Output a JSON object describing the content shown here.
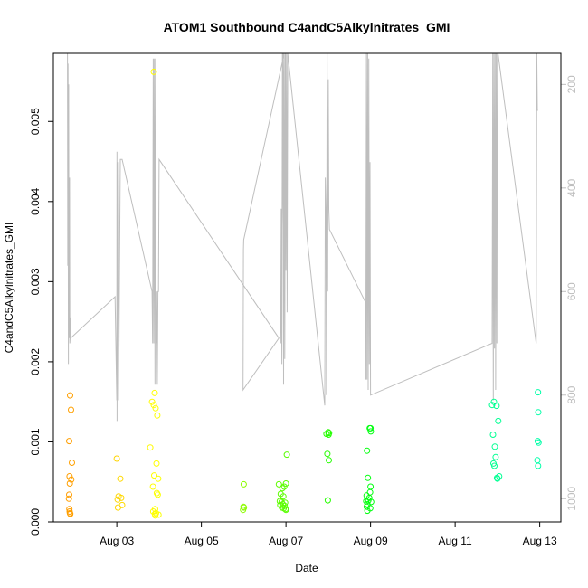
{
  "chart_data": {
    "type": "scatter",
    "title": "ATOM1 Southbound C4andC5Alkylnitrates_GMI",
    "xlabel": "Date",
    "ylabel": "C4andC5Alkylnitrates_GMI",
    "x_type": "date",
    "xlim": [
      "2016-08-01T12:00",
      "2016-08-13T12:00"
    ],
    "ylim": [
      0,
      0.00585
    ],
    "x_ticks": [
      {
        "value": "2016-08-03",
        "label": "Aug 03"
      },
      {
        "value": "2016-08-05",
        "label": "Aug 05"
      },
      {
        "value": "2016-08-07",
        "label": "Aug 07"
      },
      {
        "value": "2016-08-09",
        "label": "Aug 09"
      },
      {
        "value": "2016-08-11",
        "label": "Aug 11"
      },
      {
        "value": "2016-08-13",
        "label": "Aug 13"
      }
    ],
    "y_ticks": [
      {
        "value": 0,
        "label": "0.000"
      },
      {
        "value": 0.001,
        "label": "0.001"
      },
      {
        "value": 0.002,
        "label": "0.002"
      },
      {
        "value": 0.003,
        "label": "0.003"
      },
      {
        "value": 0.004,
        "label": "0.004"
      },
      {
        "value": 0.005,
        "label": "0.005"
      }
    ],
    "y2_reversed": true,
    "y2lim": [
      1045,
      140
    ],
    "y2_ticks": [
      {
        "value": 200,
        "label": "200"
      },
      {
        "value": 400,
        "label": "400"
      },
      {
        "value": 600,
        "label": "600"
      },
      {
        "value": 800,
        "label": "800"
      },
      {
        "value": 1000,
        "label": "1000"
      }
    ],
    "grid": false,
    "legend": "none",
    "point_color_scale": [
      "#ff8c00",
      "#ffff00",
      "#7cfc00",
      "#00ff00",
      "#00ff7f",
      "#00ffb4"
    ],
    "series": [
      {
        "kind": "points",
        "marker": "circle-open",
        "color_by_time": true,
        "points": [
          [
            "2016-08-01T21:30",
            0.00158
          ],
          [
            "2016-08-01T22:00",
            0.0014
          ],
          [
            "2016-08-01T21:00",
            0.00101
          ],
          [
            "2016-08-01T22:30",
            0.00074
          ],
          [
            "2016-08-01T21:10",
            0.00057
          ],
          [
            "2016-08-01T22:10",
            0.00053
          ],
          [
            "2016-08-01T21:20",
            0.00048
          ],
          [
            "2016-08-01T21:00",
            0.00034
          ],
          [
            "2016-08-01T20:50",
            0.00029
          ],
          [
            "2016-08-01T21:05",
            0.00016
          ],
          [
            "2016-08-01T21:15",
            0.00013
          ],
          [
            "2016-08-01T21:25",
            0.00011
          ],
          [
            "2016-08-01T21:35",
            0.0001
          ],
          [
            "2016-08-03T00:00",
            0.00079
          ],
          [
            "2016-08-03T02:00",
            0.00054
          ],
          [
            "2016-08-03T01:00",
            0.00032
          ],
          [
            "2016-08-03T02:30",
            0.0003
          ],
          [
            "2016-08-03T00:30",
            0.00028
          ],
          [
            "2016-08-03T03:00",
            0.00021
          ],
          [
            "2016-08-03T00:40",
            0.00018
          ],
          [
            "2016-08-03T21:00",
            0.00562
          ],
          [
            "2016-08-03T21:30",
            0.00161
          ],
          [
            "2016-08-03T20:00",
            0.0015
          ],
          [
            "2016-08-03T21:00",
            0.00146
          ],
          [
            "2016-08-03T22:00",
            0.00142
          ],
          [
            "2016-08-03T23:00",
            0.00133
          ],
          [
            "2016-08-03T19:00",
            0.00093
          ],
          [
            "2016-08-03T22:30",
            0.00073
          ],
          [
            "2016-08-03T21:15",
            0.00058
          ],
          [
            "2016-08-03T23:30",
            0.00054
          ],
          [
            "2016-08-03T20:30",
            0.00044
          ],
          [
            "2016-08-03T22:45",
            0.00036
          ],
          [
            "2016-08-03T23:15",
            0.00034
          ],
          [
            "2016-08-03T21:45",
            0.00016
          ],
          [
            "2016-08-03T20:40",
            0.00013
          ],
          [
            "2016-08-03T22:15",
            0.00011
          ],
          [
            "2016-08-03T21:40",
            0.0001
          ],
          [
            "2016-08-03T23:40",
            9e-05
          ],
          [
            "2016-08-03T21:50",
            8e-05
          ],
          [
            "2016-08-06T00:00",
            0.00047
          ],
          [
            "2016-08-05T23:50",
            0.00019
          ],
          [
            "2016-08-06T00:10",
            0.00018
          ],
          [
            "2016-08-05T23:40",
            0.00015
          ],
          [
            "2016-08-06T20:00",
            0.00047
          ],
          [
            "2016-08-07T00:00",
            0.00048
          ],
          [
            "2016-08-06T23:00",
            0.00044
          ],
          [
            "2016-08-06T22:00",
            0.00042
          ],
          [
            "2016-08-06T21:00",
            0.00035
          ],
          [
            "2016-08-06T22:30",
            0.00032
          ],
          [
            "2016-08-06T20:30",
            0.00026
          ],
          [
            "2016-08-06T21:30",
            0.00025
          ],
          [
            "2016-08-06T23:30",
            0.00024
          ],
          [
            "2016-08-06T22:15",
            0.00022
          ],
          [
            "2016-08-06T20:45",
            0.00021
          ],
          [
            "2016-08-06T23:15",
            0.0002
          ],
          [
            "2016-08-06T21:45",
            0.00018
          ],
          [
            "2016-08-06T22:45",
            0.00017
          ],
          [
            "2016-08-06T23:45",
            0.00016
          ],
          [
            "2016-08-07T00:00",
            0.00015
          ],
          [
            "2016-08-07T00:30",
            0.00084
          ],
          [
            "2016-08-07T23:00",
            0.0011
          ],
          [
            "2016-08-08T00:00",
            0.00112
          ],
          [
            "2016-08-08T00:30",
            0.00111
          ],
          [
            "2016-08-08T00:10",
            0.00109
          ],
          [
            "2016-08-07T23:30",
            0.00085
          ],
          [
            "2016-08-08T00:20",
            0.00077
          ],
          [
            "2016-08-07T23:45",
            0.00027
          ],
          [
            "2016-08-08T22:00",
            0.00089
          ],
          [
            "2016-08-09T00:00",
            0.00117
          ],
          [
            "2016-08-08T23:30",
            0.00117
          ],
          [
            "2016-08-09T00:10",
            0.00113
          ],
          [
            "2016-08-08T22:30",
            0.00055
          ],
          [
            "2016-08-09T00:00",
            0.00044
          ],
          [
            "2016-08-08T23:45",
            0.00037
          ],
          [
            "2016-08-08T21:45",
            0.00033
          ],
          [
            "2016-08-08T23:15",
            0.0003
          ],
          [
            "2016-08-08T22:45",
            0.00027
          ],
          [
            "2016-08-08T21:30",
            0.00026
          ],
          [
            "2016-08-09T00:20",
            0.00025
          ],
          [
            "2016-08-08T22:15",
            0.00022
          ],
          [
            "2016-08-08T21:50",
            0.00019
          ],
          [
            "2016-08-08T23:50",
            0.00017
          ],
          [
            "2016-08-08T22:10",
            0.00014
          ],
          [
            "2016-08-11T22:00",
            0.0015
          ],
          [
            "2016-08-11T21:00",
            0.00146
          ],
          [
            "2016-08-11T23:30",
            0.00145
          ],
          [
            "2016-08-12T00:30",
            0.00126
          ],
          [
            "2016-08-11T21:30",
            0.00109
          ],
          [
            "2016-08-11T22:30",
            0.00094
          ],
          [
            "2016-08-11T23:00",
            0.00081
          ],
          [
            "2016-08-11T21:45",
            0.00073
          ],
          [
            "2016-08-11T22:15",
            0.0007
          ],
          [
            "2016-08-12T01:00",
            0.00057
          ],
          [
            "2016-08-12T00:00",
            0.00054
          ],
          [
            "2016-08-11T23:45",
            0.00055
          ],
          [
            "2016-08-12T23:00",
            0.00162
          ],
          [
            "2016-08-12T23:10",
            0.00137
          ],
          [
            "2016-08-12T22:50",
            0.00101
          ],
          [
            "2016-08-12T23:20",
            0.00099
          ],
          [
            "2016-08-12T22:40",
            0.00077
          ],
          [
            "2016-08-12T23:05",
            0.0007
          ]
        ]
      },
      {
        "kind": "line",
        "axis": "y2",
        "color": "#bebebe",
        "points": [
          [
            "2016-08-01T20:00",
            140
          ],
          [
            "2016-08-01T20:10",
            550
          ],
          [
            "2016-08-01T20:20",
            160
          ],
          [
            "2016-08-01T20:30",
            740
          ],
          [
            "2016-08-01T20:40",
            200
          ],
          [
            "2016-08-01T20:50",
            640
          ],
          [
            "2016-08-01T21:00",
            690
          ],
          [
            "2016-08-01T21:10",
            380
          ],
          [
            "2016-08-01T21:20",
            700
          ],
          [
            "2016-08-01T21:30",
            690
          ],
          [
            "2016-08-01T21:40",
            650
          ],
          [
            "2016-08-01T21:50",
            690
          ],
          [
            "2016-08-02T23:00",
            610
          ],
          [
            "2016-08-03T00:00",
            810
          ],
          [
            "2016-08-03T00:05",
            330
          ],
          [
            "2016-08-03T00:10",
            850
          ],
          [
            "2016-08-03T00:20",
            350
          ],
          [
            "2016-08-03T01:00",
            810
          ],
          [
            "2016-08-03T02:00",
            345
          ],
          [
            "2016-08-03T03:00",
            345
          ],
          [
            "2016-08-03T20:00",
            600
          ],
          [
            "2016-08-03T20:20",
            700
          ],
          [
            "2016-08-03T20:40",
            150
          ],
          [
            "2016-08-03T21:00",
            700
          ],
          [
            "2016-08-03T21:20",
            150
          ],
          [
            "2016-08-03T21:40",
            780
          ],
          [
            "2016-08-03T22:00",
            150
          ],
          [
            "2016-08-03T22:20",
            700
          ],
          [
            "2016-08-03T22:40",
            600
          ],
          [
            "2016-08-03T23:00",
            780
          ],
          [
            "2016-08-03T23:20",
            600
          ],
          [
            "2016-08-03T23:40",
            600
          ],
          [
            "2016-08-04T00:00",
            345
          ],
          [
            "2016-08-06T20:00",
            690
          ],
          [
            "2016-08-05T23:40",
            790
          ],
          [
            "2016-08-05T23:50",
            520
          ],
          [
            "2016-08-06T00:00",
            500
          ],
          [
            "2016-08-06T23:00",
            140
          ],
          [
            "2016-08-06T21:00",
            700
          ],
          [
            "2016-08-06T21:20",
            440
          ],
          [
            "2016-08-06T21:40",
            740
          ],
          [
            "2016-08-06T22:00",
            140
          ],
          [
            "2016-08-06T22:20",
            140
          ],
          [
            "2016-08-06T22:40",
            780
          ],
          [
            "2016-08-06T23:00",
            140
          ],
          [
            "2016-08-06T23:20",
            730
          ],
          [
            "2016-08-06T23:40",
            140
          ],
          [
            "2016-08-07T00:00",
            560
          ],
          [
            "2016-08-07T00:20",
            140
          ],
          [
            "2016-08-07T00:40",
            640
          ],
          [
            "2016-08-07T01:00",
            140
          ],
          [
            "2016-08-07T22:00",
            820
          ],
          [
            "2016-08-07T22:20",
            380
          ],
          [
            "2016-08-07T22:40",
            440
          ],
          [
            "2016-08-07T23:00",
            800
          ],
          [
            "2016-08-07T23:20",
            140
          ],
          [
            "2016-08-07T23:40",
            600
          ],
          [
            "2016-08-08T00:00",
            190
          ],
          [
            "2016-08-08T00:20",
            440
          ],
          [
            "2016-08-08T00:40",
            480
          ],
          [
            "2016-08-08T21:00",
            620
          ],
          [
            "2016-08-08T21:20",
            770
          ],
          [
            "2016-08-08T21:40",
            140
          ],
          [
            "2016-08-08T22:00",
            770
          ],
          [
            "2016-08-08T22:20",
            140
          ],
          [
            "2016-08-08T22:40",
            790
          ],
          [
            "2016-08-08T23:00",
            150
          ],
          [
            "2016-08-08T23:20",
            740
          ],
          [
            "2016-08-08T23:40",
            350
          ],
          [
            "2016-08-09T00:00",
            800
          ],
          [
            "2016-08-11T21:00",
            700
          ],
          [
            "2016-08-11T21:20",
            140
          ],
          [
            "2016-08-11T21:40",
            810
          ],
          [
            "2016-08-11T22:00",
            140
          ],
          [
            "2016-08-11T22:20",
            710
          ],
          [
            "2016-08-11T22:40",
            140
          ],
          [
            "2016-08-11T23:00",
            790
          ],
          [
            "2016-08-11T23:20",
            140
          ],
          [
            "2016-08-11T23:40",
            700
          ],
          [
            "2016-08-12T00:00",
            140
          ],
          [
            "2016-08-12T00:20",
            140
          ],
          [
            "2016-08-12T22:00",
            700
          ],
          [
            "2016-08-12T22:20",
            140
          ],
          [
            "2016-08-12T22:40",
            250
          ],
          [
            "2016-08-12T23:00",
            250
          ]
        ]
      }
    ]
  }
}
